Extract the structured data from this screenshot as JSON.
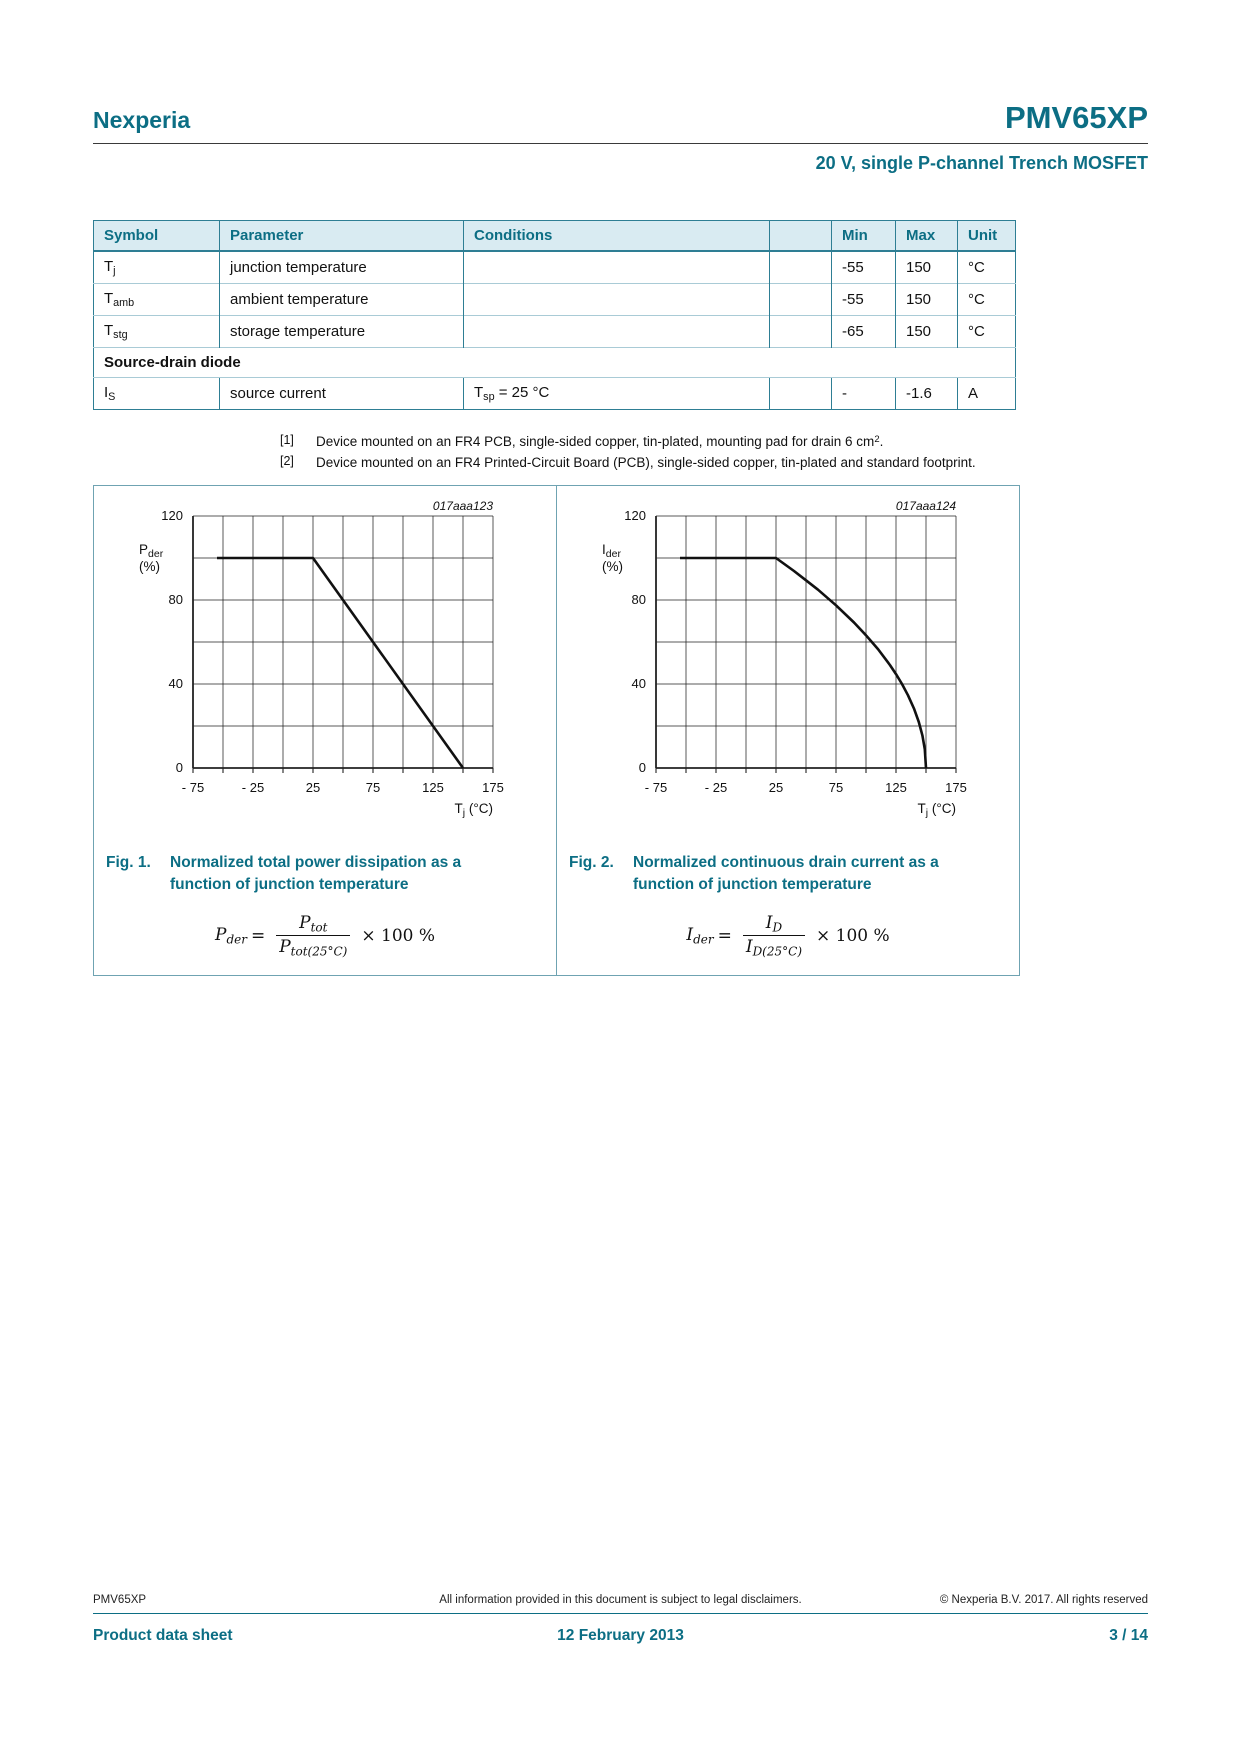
{
  "header": {
    "brand": "Nexperia",
    "part": "PMV65XP",
    "subtitle": "20 V, single P-channel Trench MOSFET"
  },
  "table": {
    "headers": [
      "Symbol",
      "Parameter",
      "Conditions",
      "",
      "Min",
      "Max",
      "Unit"
    ],
    "rows": [
      {
        "symbol": "T",
        "symbol_sub": "j",
        "parameter": "junction temperature",
        "conditions": "",
        "min": "-55",
        "max": "150",
        "unit": "°C"
      },
      {
        "symbol": "T",
        "symbol_sub": "amb",
        "parameter": "ambient temperature",
        "conditions": "",
        "min": "-55",
        "max": "150",
        "unit": "°C"
      },
      {
        "symbol": "T",
        "symbol_sub": "stg",
        "parameter": "storage temperature",
        "conditions": "",
        "min": "-65",
        "max": "150",
        "unit": "°C"
      }
    ],
    "section_label": "Source-drain diode",
    "diode_row": {
      "symbol": "I",
      "symbol_sub": "S",
      "parameter": "source current",
      "cond_pre": "T",
      "cond_sub": "sp",
      "cond_post": " = 25 °C",
      "min": "-",
      "max": "-1.6",
      "unit": "A"
    }
  },
  "footnotes": [
    {
      "marker": "[1]",
      "text": "Device mounted on an FR4 PCB, single-sided copper, tin-plated, mounting pad for drain 6 cm",
      "sup": "2",
      "tail": "."
    },
    {
      "marker": "[2]",
      "text": "Device mounted on an FR4 Printed-Circuit Board (PCB), single-sided copper, tin-plated and standard footprint.",
      "sup": "",
      "tail": ""
    }
  ],
  "figures": [
    {
      "caption_label": "Fig. 1.",
      "caption_text": "Normalized total power dissipation as a function of junction temperature",
      "formula": {
        "lhs": "P",
        "lhs_sub": "der",
        "eq": "=",
        "num": "P",
        "num_sub": "tot",
        "den": "P",
        "den_sub": "tot(25°C)",
        "tail": "× 100 %"
      }
    },
    {
      "caption_label": "Fig. 2.",
      "caption_text": "Normalized continuous drain current as a function of junction temperature",
      "formula": {
        "lhs": "I",
        "lhs_sub": "der",
        "eq": "=",
        "num": "I",
        "num_sub": "D",
        "den": "I",
        "den_sub": "D(25°C)",
        "tail": "× 100 %"
      }
    }
  ],
  "chart_data": [
    {
      "type": "line",
      "plot_id": "017aaa123",
      "title": "Normalized total power dissipation as a function of junction temperature",
      "xlabel": "Tj (°C)",
      "ylabel": "Pder (%)",
      "xlabel_parts": {
        "main": "T",
        "sub": "j",
        "unit": " (°C)"
      },
      "ylabel_parts": {
        "main": "P",
        "sub": "der",
        "unit": "(%)"
      },
      "xlim": [
        -75,
        175
      ],
      "ylim": [
        0,
        120
      ],
      "x_grid_step": 25,
      "y_grid_step": 20,
      "grid": true,
      "legend": "none",
      "x_ticks": [
        -75,
        -25,
        25,
        75,
        125,
        175
      ],
      "x_tick_labels": [
        "- 75",
        "- 25",
        "25",
        "75",
        "125",
        "175"
      ],
      "y_ticks": [
        0,
        40,
        80,
        120
      ],
      "y_tick_labels": [
        "0",
        "40",
        "80",
        "120"
      ],
      "series": [
        {
          "name": "Pder (%)",
          "points": [
            [
              -55,
              100
            ],
            [
              25,
              100
            ],
            [
              150,
              0
            ]
          ]
        }
      ]
    },
    {
      "type": "line",
      "plot_id": "017aaa124",
      "title": "Normalized continuous drain current as a function of junction temperature",
      "xlabel": "Tj (°C)",
      "ylabel": "Ider (%)",
      "xlabel_parts": {
        "main": "T",
        "sub": "j",
        "unit": " (°C)"
      },
      "ylabel_parts": {
        "main": "I",
        "sub": "der",
        "unit": "(%)"
      },
      "xlim": [
        -75,
        175
      ],
      "ylim": [
        0,
        120
      ],
      "x_grid_step": 25,
      "y_grid_step": 20,
      "grid": true,
      "legend": "none",
      "x_ticks": [
        -75,
        -25,
        25,
        75,
        125,
        175
      ],
      "x_tick_labels": [
        "- 75",
        "- 25",
        "25",
        "75",
        "125",
        "175"
      ],
      "y_ticks": [
        0,
        40,
        80,
        120
      ],
      "y_tick_labels": [
        "0",
        "40",
        "80",
        "120"
      ],
      "series": [
        {
          "name": "Ider (%)",
          "points": [
            [
              -55,
              100
            ],
            [
              25,
              100
            ],
            [
              40,
              93.8
            ],
            [
              50,
              89.4
            ],
            [
              60,
              84.9
            ],
            [
              75,
              77.5
            ],
            [
              90,
              69.3
            ],
            [
              100,
              63.2
            ],
            [
              110,
              56.6
            ],
            [
              120,
              49.0
            ],
            [
              125,
              44.7
            ],
            [
              130,
              40.0
            ],
            [
              135,
              34.6
            ],
            [
              140,
              28.3
            ],
            [
              144,
              21.9
            ],
            [
              147,
              15.5
            ],
            [
              149,
              8.9
            ],
            [
              150,
              0
            ]
          ]
        }
      ]
    }
  ],
  "footer": {
    "line1_left": "PMV65XP",
    "line1_center": "All information provided in this document is subject to legal disclaimers.",
    "line1_right": "© Nexperia B.V. 2017. All rights reserved",
    "line2_left": "Product data sheet",
    "line2_center": "12 February 2013",
    "line2_right": "3 / 14"
  },
  "colors": {
    "accent": "#0c6e84",
    "table_header_bg": "#d9ebf2",
    "table_border": "#2e7e94",
    "row_separator": "#a9cbd6",
    "figure_border": "#6fa3b2",
    "curve": "#111111"
  }
}
